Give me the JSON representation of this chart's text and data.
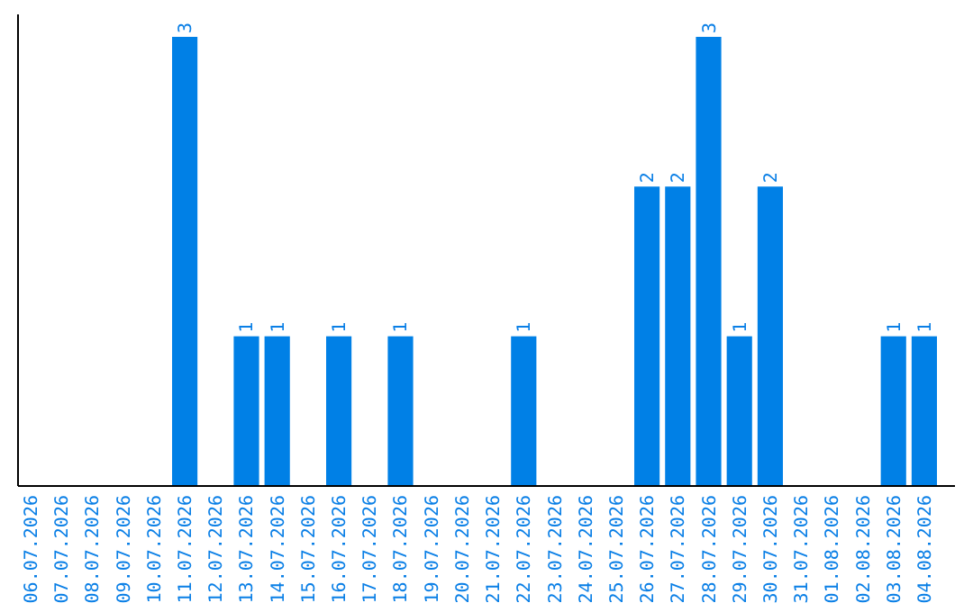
{
  "chart_data": {
    "type": "bar",
    "categories": [
      "06.07.2026",
      "07.07.2026",
      "08.07.2026",
      "09.07.2026",
      "10.07.2026",
      "11.07.2026",
      "12.07.2026",
      "13.07.2026",
      "14.07.2026",
      "15.07.2026",
      "16.07.2026",
      "17.07.2026",
      "18.07.2026",
      "19.07.2026",
      "20.07.2026",
      "21.07.2026",
      "22.07.2026",
      "23.07.2026",
      "24.07.2026",
      "25.07.2026",
      "26.07.2026",
      "27.07.2026",
      "28.07.2026",
      "29.07.2026",
      "30.07.2026",
      "31.07.2026",
      "01.08.2026",
      "02.08.2026",
      "03.08.2026",
      "04.08.2026"
    ],
    "values": [
      0,
      0,
      0,
      0,
      0,
      3,
      0,
      1,
      1,
      0,
      1,
      0,
      1,
      0,
      0,
      0,
      1,
      0,
      0,
      0,
      2,
      2,
      3,
      1,
      2,
      0,
      0,
      0,
      1,
      1
    ],
    "value_labels": [
      null,
      null,
      null,
      null,
      null,
      "3",
      null,
      "1",
      "1",
      null,
      "1",
      null,
      "1",
      null,
      null,
      null,
      "1",
      null,
      null,
      null,
      "2",
      "2",
      "3",
      "1",
      "2",
      null,
      null,
      null,
      "1",
      "1"
    ],
    "color": "#0080e6",
    "ylim": [
      0,
      3.15
    ],
    "tick_labels": "x"
  }
}
